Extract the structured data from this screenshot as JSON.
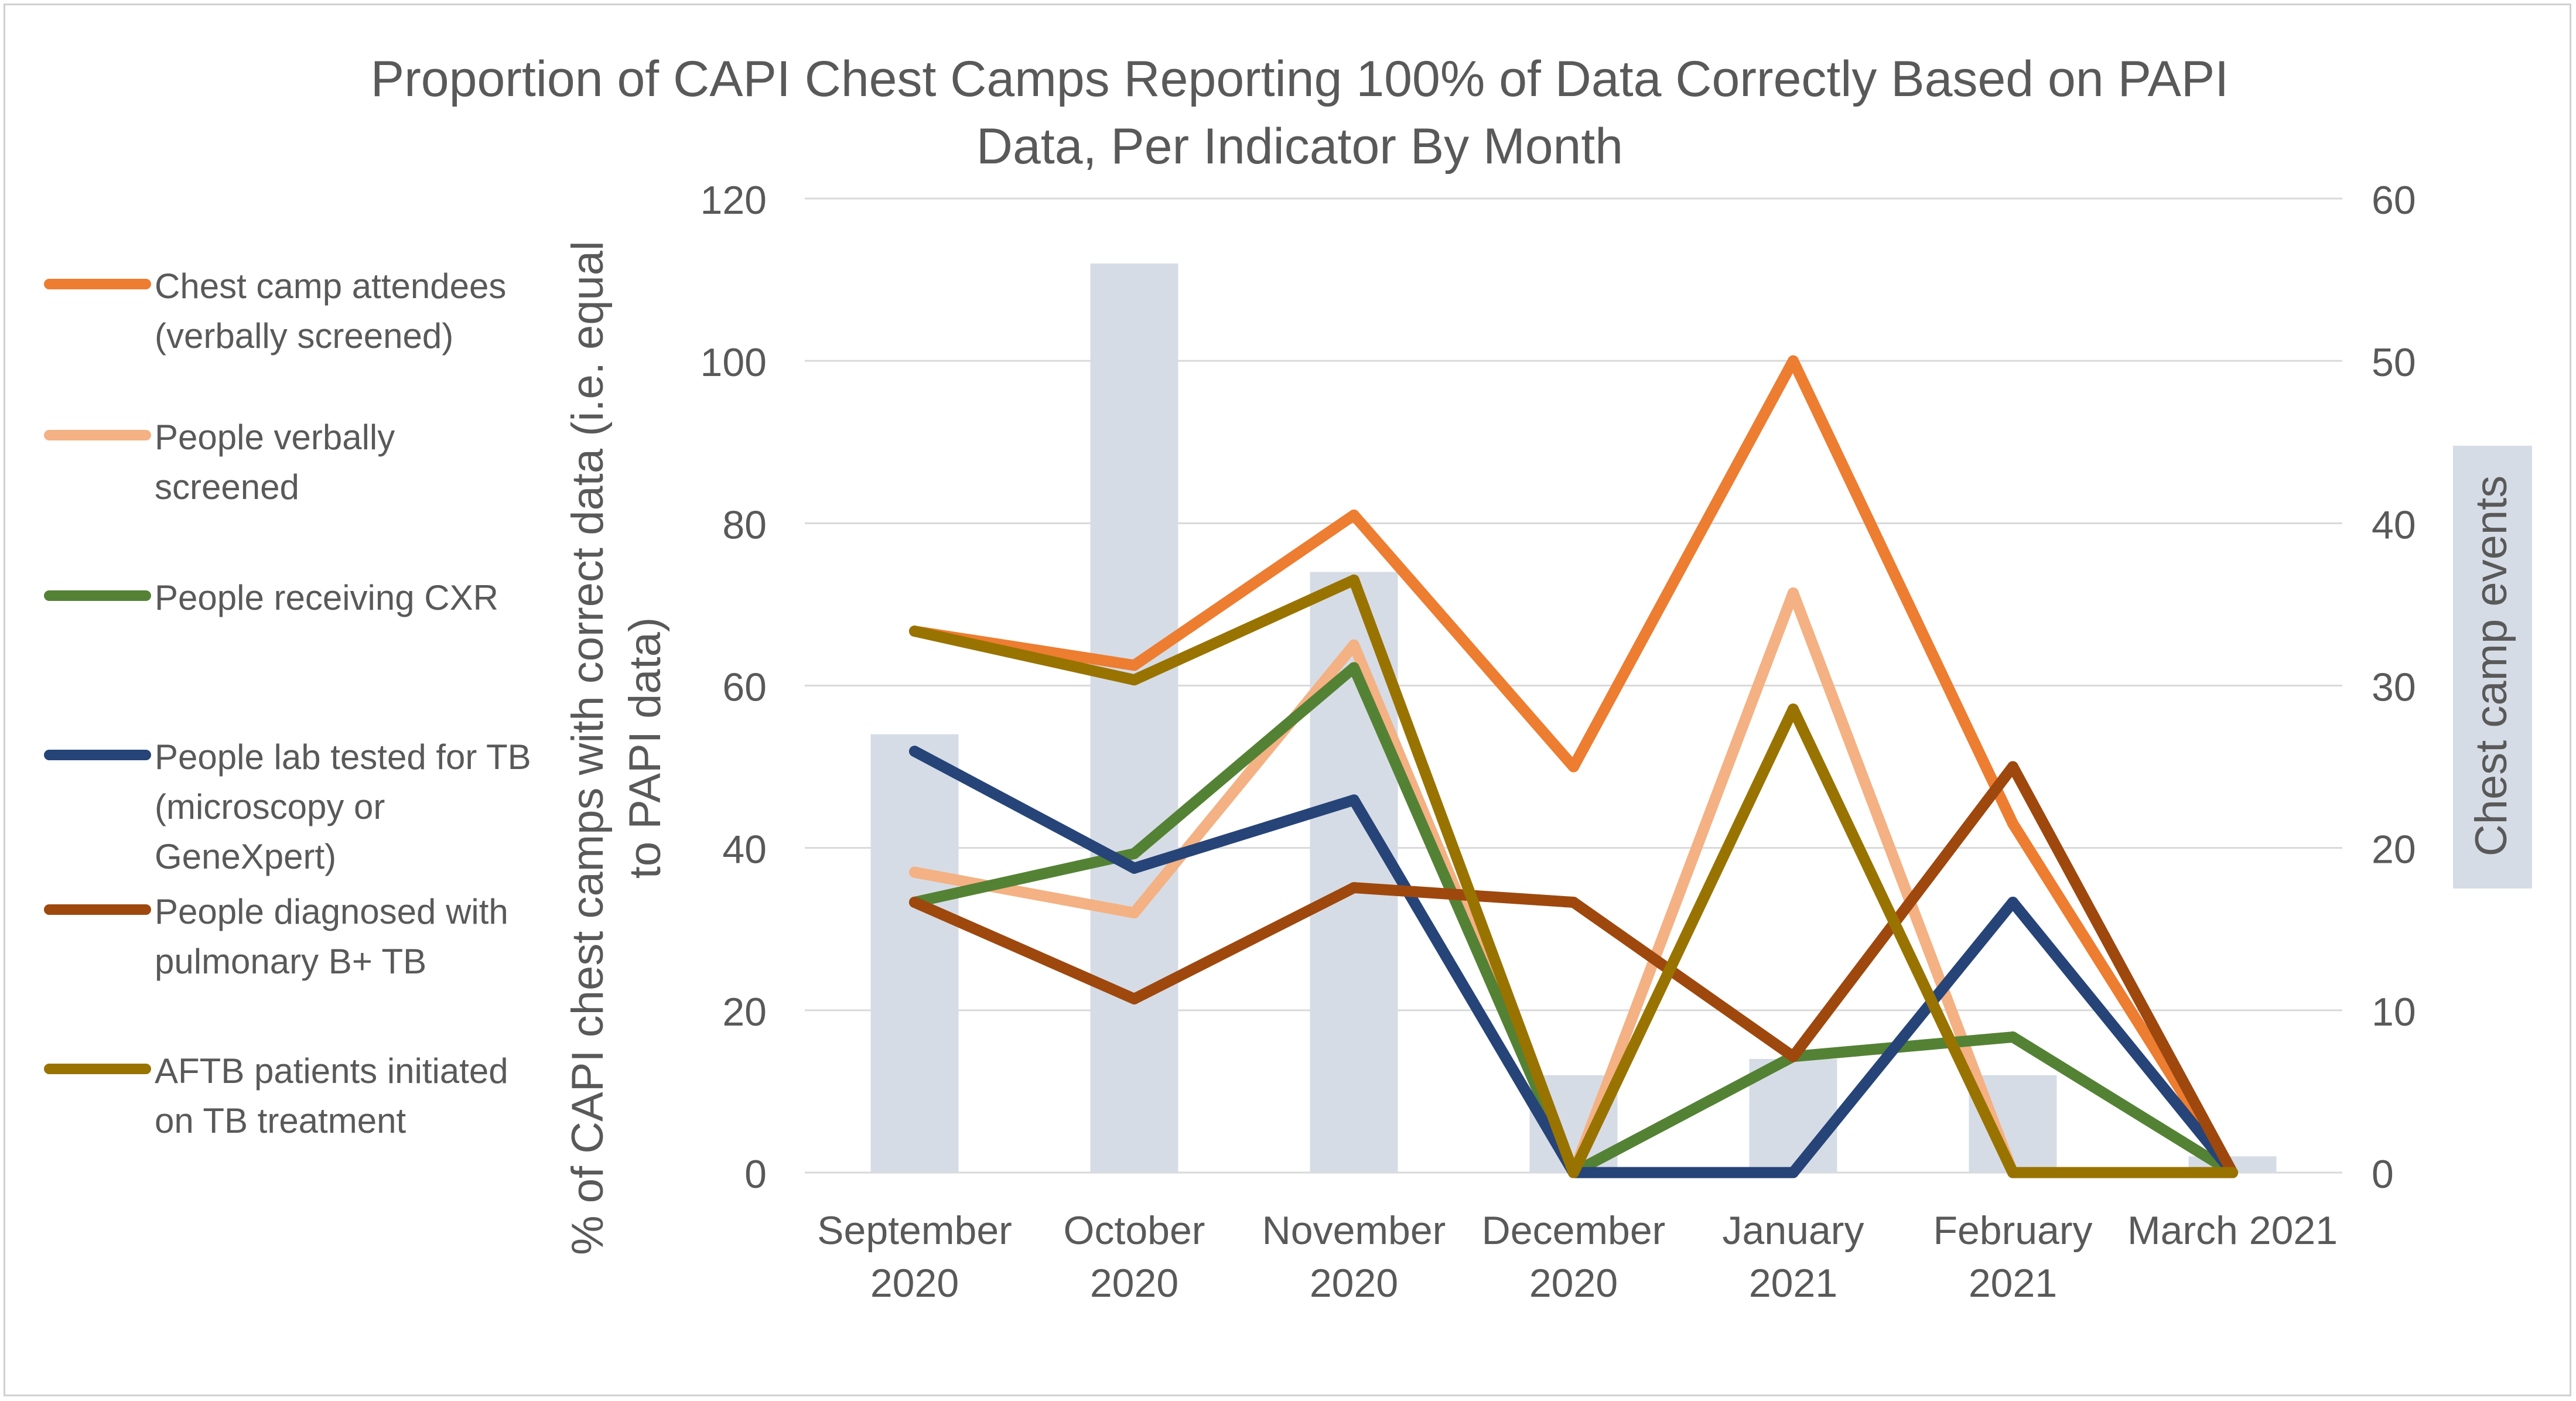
{
  "chart_data": {
    "type": "bar+line",
    "title_lines": [
      "Proportion of CAPI Chest Camps Reporting 100% of Data Correctly Based on PAPI",
      "Data, Per Indicator By Month"
    ],
    "categories": [
      [
        "September",
        "2020"
      ],
      [
        "October",
        "2020"
      ],
      [
        "November",
        "2020"
      ],
      [
        "December",
        "2020"
      ],
      [
        "January",
        "2021"
      ],
      [
        "February",
        "2021"
      ],
      [
        "March 2021"
      ]
    ],
    "ylabel_lines": [
      "% of CAPI chest camps with correct data (i.e. equal",
      "to PAPI data)"
    ],
    "y2label": "Chest camp events",
    "ylim": [
      0,
      120
    ],
    "y_ticks": [
      "0",
      "20",
      "40",
      "60",
      "80",
      "100",
      "120"
    ],
    "y2lim": [
      0,
      60
    ],
    "y2_ticks": [
      "0",
      "10",
      "20",
      "30",
      "40",
      "50",
      "60"
    ],
    "bars": {
      "name": "Chest camp events",
      "axis": "secondary",
      "color": "#d6dce5",
      "values": [
        27,
        56,
        37,
        6,
        7,
        6,
        1
      ]
    },
    "series": [
      {
        "name_lines": [
          "Chest camp attendees",
          "(verbally screened)"
        ],
        "color": "#ed7d31",
        "values": [
          66.7,
          62.5,
          81,
          50,
          100,
          43,
          0
        ]
      },
      {
        "name_lines": [
          "People verbally",
          "screened"
        ],
        "color": "#f4b183",
        "values": [
          37,
          32,
          65,
          0,
          71.4,
          0,
          0
        ]
      },
      {
        "name_lines": [
          "People receiving CXR"
        ],
        "color": "#548235",
        "values": [
          33.3,
          39.3,
          62.2,
          0,
          14.3,
          16.7,
          0
        ]
      },
      {
        "name_lines": [
          "People lab tested for TB",
          "(microscopy or",
          "GeneXpert)"
        ],
        "color": "#264478",
        "values": [
          51.9,
          37.5,
          45.9,
          0,
          0,
          33.3,
          0
        ]
      },
      {
        "name_lines": [
          "People diagnosed with",
          "pulmonary B+ TB"
        ],
        "color": "#9e480e",
        "values": [
          33.3,
          21.4,
          35.1,
          33.3,
          14.3,
          50,
          0
        ]
      },
      {
        "name_lines": [
          "AFTB patients initiated",
          "on TB treatment"
        ],
        "color": "#997300",
        "values": [
          66.7,
          60.7,
          73,
          0,
          57.1,
          0,
          0
        ]
      }
    ]
  }
}
